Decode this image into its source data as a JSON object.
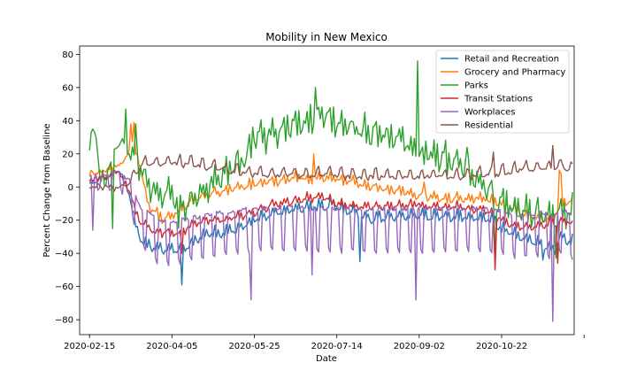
{
  "chart_data": {
    "type": "line",
    "title": "Mobility in New Mexico",
    "xlabel": "Date",
    "ylabel": "Percent Change from Baseline",
    "ylim": [
      -89,
      85
    ],
    "yticks": [
      80,
      60,
      40,
      20,
      0,
      -20,
      -40,
      -60,
      -80
    ],
    "xlim_days": [
      -6,
      294
    ],
    "start_date": "2020-02-15",
    "num_days": 294,
    "xticks": [
      {
        "day": 0,
        "label": "2020-02-15"
      },
      {
        "day": 50,
        "label": "2020-04-05"
      },
      {
        "day": 100,
        "label": "2020-05-25"
      },
      {
        "day": 150,
        "label": "2020-07-14"
      },
      {
        "day": 200,
        "label": "2020-09-02"
      },
      {
        "day": 250,
        "label": "2020-10-22"
      },
      {
        "day": 300,
        "label": ""
      }
    ],
    "legend_position": "top-right",
    "grid": false,
    "series": [
      {
        "name": "Retail and Recreation",
        "color": "#1f77b4",
        "weekday_offsets": [
          -1,
          3,
          -2,
          -2,
          -1,
          -1,
          4
        ],
        "anchors": [
          [
            0,
            3
          ],
          [
            10,
            6
          ],
          [
            18,
            10
          ],
          [
            24,
            -3
          ],
          [
            28,
            -22
          ],
          [
            32,
            -33
          ],
          [
            40,
            -37
          ],
          [
            55,
            -38
          ],
          [
            63,
            -33
          ],
          [
            70,
            -28
          ],
          [
            80,
            -28
          ],
          [
            90,
            -25
          ],
          [
            100,
            -20
          ],
          [
            115,
            -15
          ],
          [
            125,
            -13
          ],
          [
            140,
            -12
          ],
          [
            148,
            -10
          ],
          [
            155,
            -14
          ],
          [
            170,
            -19
          ],
          [
            185,
            -18
          ],
          [
            200,
            -17
          ],
          [
            215,
            -18
          ],
          [
            230,
            -18
          ],
          [
            245,
            -20
          ],
          [
            252,
            -27
          ],
          [
            260,
            -29
          ],
          [
            275,
            -35
          ],
          [
            282,
            -38
          ],
          [
            285,
            -30
          ],
          [
            293,
            -33
          ]
        ],
        "spikes": [
          [
            56,
            -59
          ],
          [
            164,
            -45
          ],
          [
            275,
            -44
          ]
        ]
      },
      {
        "name": "Grocery and Pharmacy",
        "color": "#ff7f0e",
        "weekday_offsets": [
          -2,
          2,
          -2,
          -1,
          0,
          0,
          3
        ],
        "anchors": [
          [
            0,
            8
          ],
          [
            10,
            10
          ],
          [
            20,
            14
          ],
          [
            26,
            26
          ],
          [
            30,
            16
          ],
          [
            36,
            -12
          ],
          [
            45,
            -20
          ],
          [
            55,
            -14
          ],
          [
            62,
            -8
          ],
          [
            70,
            -5
          ],
          [
            80,
            -3
          ],
          [
            90,
            0
          ],
          [
            100,
            2
          ],
          [
            115,
            4
          ],
          [
            125,
            6
          ],
          [
            135,
            5
          ],
          [
            145,
            6
          ],
          [
            155,
            4
          ],
          [
            165,
            2
          ],
          [
            180,
            -1
          ],
          [
            200,
            -5
          ],
          [
            220,
            -7
          ],
          [
            240,
            -7
          ],
          [
            250,
            -10
          ],
          [
            260,
            -15
          ],
          [
            270,
            -18
          ],
          [
            280,
            -20
          ],
          [
            287,
            -10
          ],
          [
            293,
            -8
          ]
        ],
        "spikes": [
          [
            25,
            38
          ],
          [
            27,
            39
          ],
          [
            136,
            20
          ],
          [
            203,
            3
          ],
          [
            285,
            10
          ],
          [
            286,
            8
          ]
        ]
      },
      {
        "name": "Parks",
        "color": "#2ca02c",
        "weekday_offsets": [
          -5,
          6,
          -6,
          -3,
          1,
          2,
          8
        ],
        "anchors": [
          [
            0,
            25
          ],
          [
            3,
            33
          ],
          [
            6,
            10
          ],
          [
            10,
            5
          ],
          [
            15,
            20
          ],
          [
            20,
            25
          ],
          [
            25,
            20
          ],
          [
            30,
            12
          ],
          [
            35,
            3
          ],
          [
            40,
            -3
          ],
          [
            45,
            -4
          ],
          [
            50,
            -6
          ],
          [
            55,
            -10
          ],
          [
            60,
            -10
          ],
          [
            65,
            -5
          ],
          [
            75,
            2
          ],
          [
            85,
            10
          ],
          [
            95,
            18
          ],
          [
            100,
            30
          ],
          [
            110,
            30
          ],
          [
            120,
            35
          ],
          [
            130,
            40
          ],
          [
            140,
            42
          ],
          [
            150,
            38
          ],
          [
            160,
            35
          ],
          [
            170,
            32
          ],
          [
            180,
            30
          ],
          [
            190,
            28
          ],
          [
            200,
            20
          ],
          [
            210,
            18
          ],
          [
            220,
            15
          ],
          [
            230,
            10
          ],
          [
            240,
            0
          ],
          [
            250,
            -10
          ],
          [
            260,
            -15
          ],
          [
            270,
            -18
          ],
          [
            280,
            -20
          ],
          [
            287,
            -18
          ],
          [
            293,
            -14
          ]
        ],
        "spikes": [
          [
            2,
            35
          ],
          [
            14,
            -25
          ],
          [
            22,
            47
          ],
          [
            28,
            38
          ],
          [
            54,
            -25
          ],
          [
            137,
            60
          ],
          [
            199,
            76
          ],
          [
            229,
            24
          ],
          [
            246,
            -42
          ],
          [
            283,
            -43
          ]
        ]
      },
      {
        "name": "Transit Stations",
        "color": "#d62728",
        "weekday_offsets": [
          -1,
          2,
          -2,
          -1,
          0,
          0,
          3
        ],
        "anchors": [
          [
            0,
            4
          ],
          [
            10,
            6
          ],
          [
            18,
            9
          ],
          [
            24,
            -2
          ],
          [
            28,
            -15
          ],
          [
            32,
            -22
          ],
          [
            40,
            -27
          ],
          [
            55,
            -28
          ],
          [
            60,
            -24
          ],
          [
            70,
            -20
          ],
          [
            80,
            -20
          ],
          [
            90,
            -18
          ],
          [
            100,
            -15
          ],
          [
            110,
            -11
          ],
          [
            120,
            -9
          ],
          [
            130,
            -7
          ],
          [
            140,
            -6
          ],
          [
            150,
            -10
          ],
          [
            160,
            -12
          ],
          [
            170,
            -12
          ],
          [
            180,
            -12
          ],
          [
            190,
            -11
          ],
          [
            200,
            -11
          ],
          [
            210,
            -12
          ],
          [
            220,
            -12
          ],
          [
            230,
            -13
          ],
          [
            240,
            -14
          ],
          [
            250,
            -20
          ],
          [
            260,
            -24
          ],
          [
            270,
            -24
          ],
          [
            280,
            -22
          ],
          [
            287,
            -20
          ],
          [
            293,
            -22
          ]
        ],
        "spikes": [
          [
            56,
            -40
          ],
          [
            246,
            -50
          ],
          [
            284,
            -46
          ]
        ]
      },
      {
        "name": "Workplaces",
        "color": "#9467bd",
        "weekday_offsets": [
          16,
          16,
          16,
          16,
          16,
          -8,
          -10
        ],
        "anchors": [
          [
            0,
            1
          ],
          [
            10,
            2
          ],
          [
            18,
            3
          ],
          [
            24,
            -5
          ],
          [
            28,
            -18
          ],
          [
            32,
            -28
          ],
          [
            40,
            -35
          ],
          [
            50,
            -37
          ],
          [
            60,
            -35
          ],
          [
            70,
            -33
          ],
          [
            80,
            -31
          ],
          [
            90,
            -30
          ],
          [
            100,
            -29
          ],
          [
            120,
            -28
          ],
          [
            150,
            -29
          ],
          [
            180,
            -29
          ],
          [
            200,
            -29
          ],
          [
            230,
            -29
          ],
          [
            250,
            -30
          ],
          [
            260,
            -33
          ],
          [
            270,
            -32
          ],
          [
            280,
            -32
          ],
          [
            287,
            -30
          ],
          [
            293,
            -33
          ]
        ],
        "spikes": [
          [
            2,
            -26
          ],
          [
            98,
            -68
          ],
          [
            135,
            -53
          ],
          [
            198,
            -68
          ],
          [
            281,
            -81
          ]
        ]
      },
      {
        "name": "Residential",
        "color": "#8c564b",
        "weekday_offsets": [
          -1,
          -2,
          -1,
          -1,
          -1,
          3,
          4
        ],
        "anchors": [
          [
            0,
            0
          ],
          [
            10,
            0
          ],
          [
            18,
            -1
          ],
          [
            24,
            3
          ],
          [
            28,
            9
          ],
          [
            32,
            14
          ],
          [
            40,
            15
          ],
          [
            55,
            15
          ],
          [
            65,
            14
          ],
          [
            80,
            11
          ],
          [
            95,
            9
          ],
          [
            110,
            8
          ],
          [
            125,
            8
          ],
          [
            140,
            8
          ],
          [
            155,
            7
          ],
          [
            170,
            7
          ],
          [
            185,
            7
          ],
          [
            200,
            7
          ],
          [
            215,
            7
          ],
          [
            230,
            7
          ],
          [
            245,
            8
          ],
          [
            255,
            10
          ],
          [
            265,
            11
          ],
          [
            280,
            12
          ],
          [
            287,
            13
          ],
          [
            293,
            11
          ]
        ],
        "spikes": [
          [
            245,
            21
          ],
          [
            281,
            25
          ]
        ]
      }
    ]
  }
}
